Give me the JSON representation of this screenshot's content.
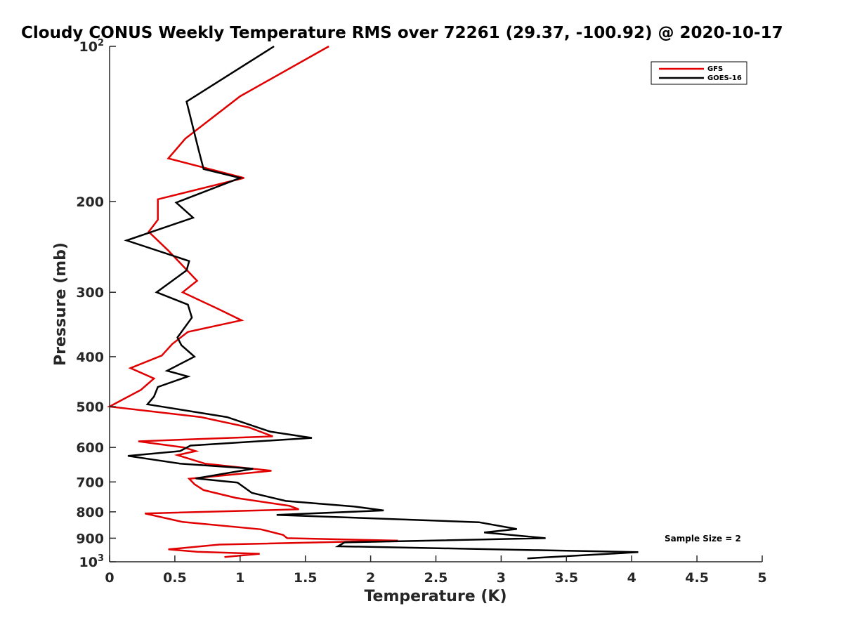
{
  "chart_data": {
    "type": "line",
    "title": "Cloudy CONUS Weekly Temperature RMS over 72261 (29.37, -100.92) @ 2020-10-17",
    "xlabel": "Temperature (K)",
    "ylabel": "Pressure (mb)",
    "xlim": [
      0,
      5
    ],
    "ylim": [
      100,
      1000
    ],
    "yscale": "log",
    "y_reversed": true,
    "x_ticks": [
      "0",
      "0.5",
      "1",
      "1.5",
      "2",
      "2.5",
      "3",
      "3.5",
      "4",
      "4.5",
      "5"
    ],
    "x_tick_values": [
      0,
      0.5,
      1,
      1.5,
      2,
      2.5,
      3,
      3.5,
      4,
      4.5,
      5
    ],
    "y_ticks": [
      {
        "value": 100,
        "base": "10",
        "exp": "2"
      },
      {
        "value": 200,
        "label": "200"
      },
      {
        "value": 300,
        "label": "300"
      },
      {
        "value": 400,
        "label": "400"
      },
      {
        "value": 500,
        "label": "500"
      },
      {
        "value": 600,
        "label": "600"
      },
      {
        "value": 700,
        "label": "700"
      },
      {
        "value": 800,
        "label": "800"
      },
      {
        "value": 900,
        "label": "900"
      },
      {
        "value": 1000,
        "base": "10",
        "exp": "3"
      }
    ],
    "legend_position": "top-right",
    "annotation": "Sample Size = 2",
    "series": [
      {
        "name": "GFS",
        "color": "#e00000",
        "points": [
          [
            1.68,
            100
          ],
          [
            1.0,
            125
          ],
          [
            0.58,
            151
          ],
          [
            0.45,
            165
          ],
          [
            1.03,
            180
          ],
          [
            0.37,
            198
          ],
          [
            0.37,
            217
          ],
          [
            0.3,
            229
          ],
          [
            0.45,
            249
          ],
          [
            0.67,
            285
          ],
          [
            0.56,
            300
          ],
          [
            0.83,
            323
          ],
          [
            1.01,
            340
          ],
          [
            0.6,
            358
          ],
          [
            0.48,
            378
          ],
          [
            0.4,
            398
          ],
          [
            0.16,
            421
          ],
          [
            0.34,
            441
          ],
          [
            0.24,
            464
          ],
          [
            0.09,
            486
          ],
          [
            0.0,
            500
          ],
          [
            0.7,
            524
          ],
          [
            1.07,
            549
          ],
          [
            1.25,
            571
          ],
          [
            0.75,
            577
          ],
          [
            0.22,
            584
          ],
          [
            0.57,
            600
          ],
          [
            0.66,
            610
          ],
          [
            0.52,
            621
          ],
          [
            0.73,
            645
          ],
          [
            1.24,
            666
          ],
          [
            0.61,
            690
          ],
          [
            0.65,
            707
          ],
          [
            0.72,
            726
          ],
          [
            0.97,
            752
          ],
          [
            1.38,
            779
          ],
          [
            1.45,
            791
          ],
          [
            0.27,
            806
          ],
          [
            0.56,
            837
          ],
          [
            1.16,
            865
          ],
          [
            1.33,
            887
          ],
          [
            1.36,
            900
          ],
          [
            2.21,
            910
          ],
          [
            0.84,
            926
          ],
          [
            0.45,
            946
          ],
          [
            0.67,
            956
          ],
          [
            1.15,
            965
          ],
          [
            0.88,
            979
          ]
        ]
      },
      {
        "name": "GOES-16",
        "color": "#000000",
        "points": [
          [
            1.26,
            100
          ],
          [
            0.59,
            128
          ],
          [
            0.68,
            158
          ],
          [
            0.72,
            173
          ],
          [
            1.0,
            180
          ],
          [
            0.51,
            201
          ],
          [
            0.64,
            215
          ],
          [
            0.13,
            238
          ],
          [
            0.61,
            261
          ],
          [
            0.59,
            272
          ],
          [
            0.36,
            300
          ],
          [
            0.6,
            317
          ],
          [
            0.63,
            336
          ],
          [
            0.52,
            367
          ],
          [
            0.55,
            380
          ],
          [
            0.65,
            400
          ],
          [
            0.44,
            426
          ],
          [
            0.6,
            437
          ],
          [
            0.37,
            458
          ],
          [
            0.34,
            478
          ],
          [
            0.29,
            495
          ],
          [
            0.9,
            524
          ],
          [
            1.23,
            559
          ],
          [
            1.55,
            575
          ],
          [
            0.62,
            595
          ],
          [
            0.54,
            610
          ],
          [
            0.14,
            623
          ],
          [
            0.54,
            645
          ],
          [
            1.1,
            660
          ],
          [
            0.66,
            689
          ],
          [
            0.98,
            702
          ],
          [
            1.09,
            735
          ],
          [
            1.35,
            762
          ],
          [
            1.87,
            781
          ],
          [
            2.1,
            795
          ],
          [
            1.28,
            811
          ],
          [
            2.83,
            838
          ],
          [
            3.12,
            864
          ],
          [
            2.87,
            877
          ],
          [
            3.34,
            900
          ],
          [
            1.8,
            917
          ],
          [
            1.75,
            933
          ],
          [
            4.05,
            958
          ],
          [
            3.2,
            985
          ]
        ]
      }
    ]
  }
}
